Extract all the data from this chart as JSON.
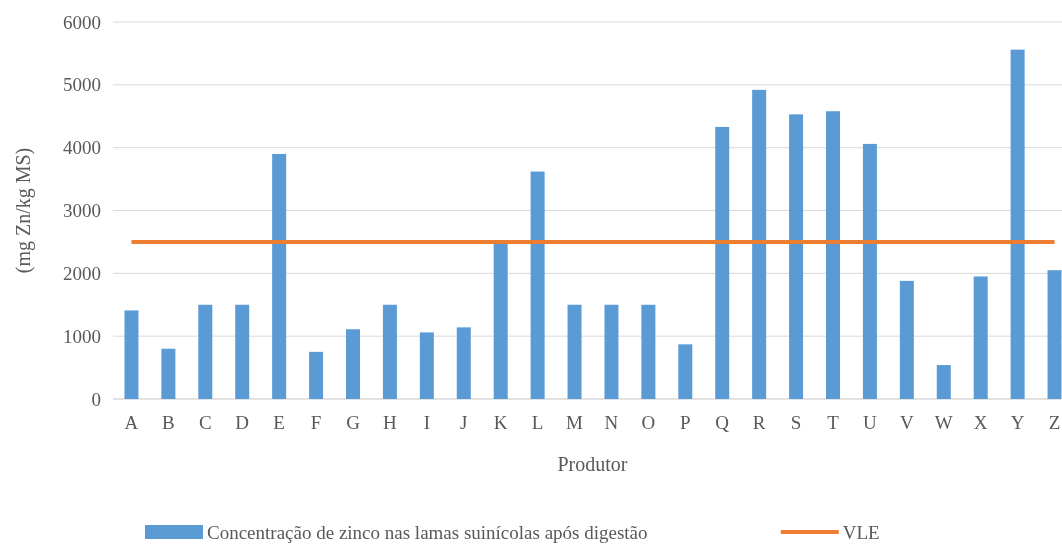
{
  "chart_data": {
    "type": "bar",
    "xlabel": "Produtor",
    "ylabel": "(mg Zn/kg MS)",
    "categories": [
      "A",
      "B",
      "C",
      "D",
      "E",
      "F",
      "G",
      "H",
      "I",
      "J",
      "K",
      "L",
      "M",
      "N",
      "O",
      "P",
      "Q",
      "R",
      "S",
      "T",
      "U",
      "V",
      "W",
      "X",
      "Y",
      "Z"
    ],
    "series": [
      {
        "name": "Concentração de zinco nas lamas suinícolas após digestão",
        "color": "#5b9bd5",
        "values": [
          1410,
          800,
          1500,
          1500,
          3900,
          750,
          1110,
          1500,
          1060,
          1140,
          2480,
          3620,
          1500,
          1500,
          1500,
          870,
          4330,
          4920,
          4530,
          4580,
          4060,
          1880,
          540,
          1950,
          5560,
          2050
        ]
      },
      {
        "name": "VLE",
        "type": "line",
        "color": "#ed7d31",
        "values": [
          2500,
          2500,
          2500,
          2500,
          2500,
          2500,
          2500,
          2500,
          2500,
          2500,
          2500,
          2500,
          2500,
          2500,
          2500,
          2500,
          2500,
          2500,
          2500,
          2500,
          2500,
          2500,
          2500,
          2500,
          2500,
          2500
        ]
      }
    ],
    "ylim": [
      0,
      6000
    ],
    "yticks": [
      0,
      1000,
      2000,
      3000,
      4000,
      5000,
      6000
    ],
    "grid": "y",
    "legend": "bottom"
  }
}
